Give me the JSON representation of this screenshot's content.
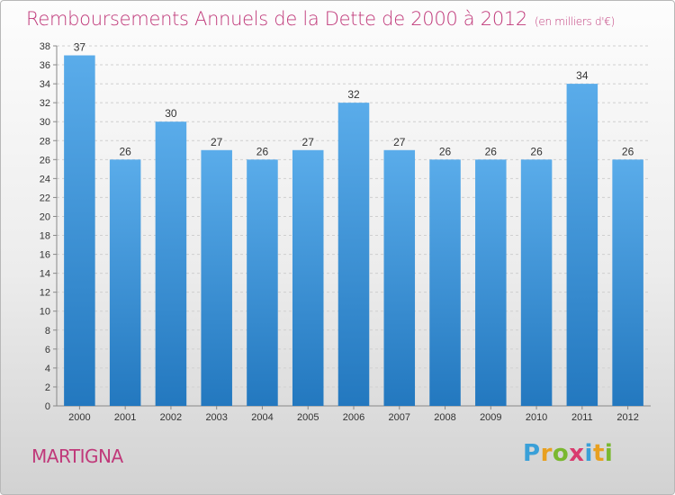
{
  "header": {
    "title": "Remboursements Annuels de la Dette de 2000 à 2012",
    "subtitle": "(en milliers d'€)"
  },
  "footer": {
    "commune": "MARTIGNA",
    "logo_letters": [
      "P",
      "r",
      "o",
      "x",
      "i",
      "t",
      "i"
    ],
    "logo_colors": [
      "#3aa0d8",
      "#e8a020",
      "#7ab830",
      "#d93b6e",
      "#3aa0d8",
      "#e8a020",
      "#7ab830"
    ]
  },
  "chart_data": {
    "type": "bar",
    "categories": [
      "2000",
      "2001",
      "2002",
      "2003",
      "2004",
      "2005",
      "2006",
      "2007",
      "2008",
      "2009",
      "2010",
      "2011",
      "2012"
    ],
    "values": [
      37,
      26,
      30,
      27,
      26,
      27,
      32,
      27,
      26,
      26,
      26,
      34,
      26
    ],
    "ylim": [
      0,
      38
    ],
    "yticks": [
      0,
      2,
      4,
      6,
      8,
      10,
      12,
      14,
      16,
      18,
      20,
      22,
      24,
      26,
      28,
      30,
      32,
      34,
      36,
      38
    ],
    "grid": true,
    "bar_color_top": "#5aacea",
    "bar_color_bottom": "#2378bf"
  }
}
